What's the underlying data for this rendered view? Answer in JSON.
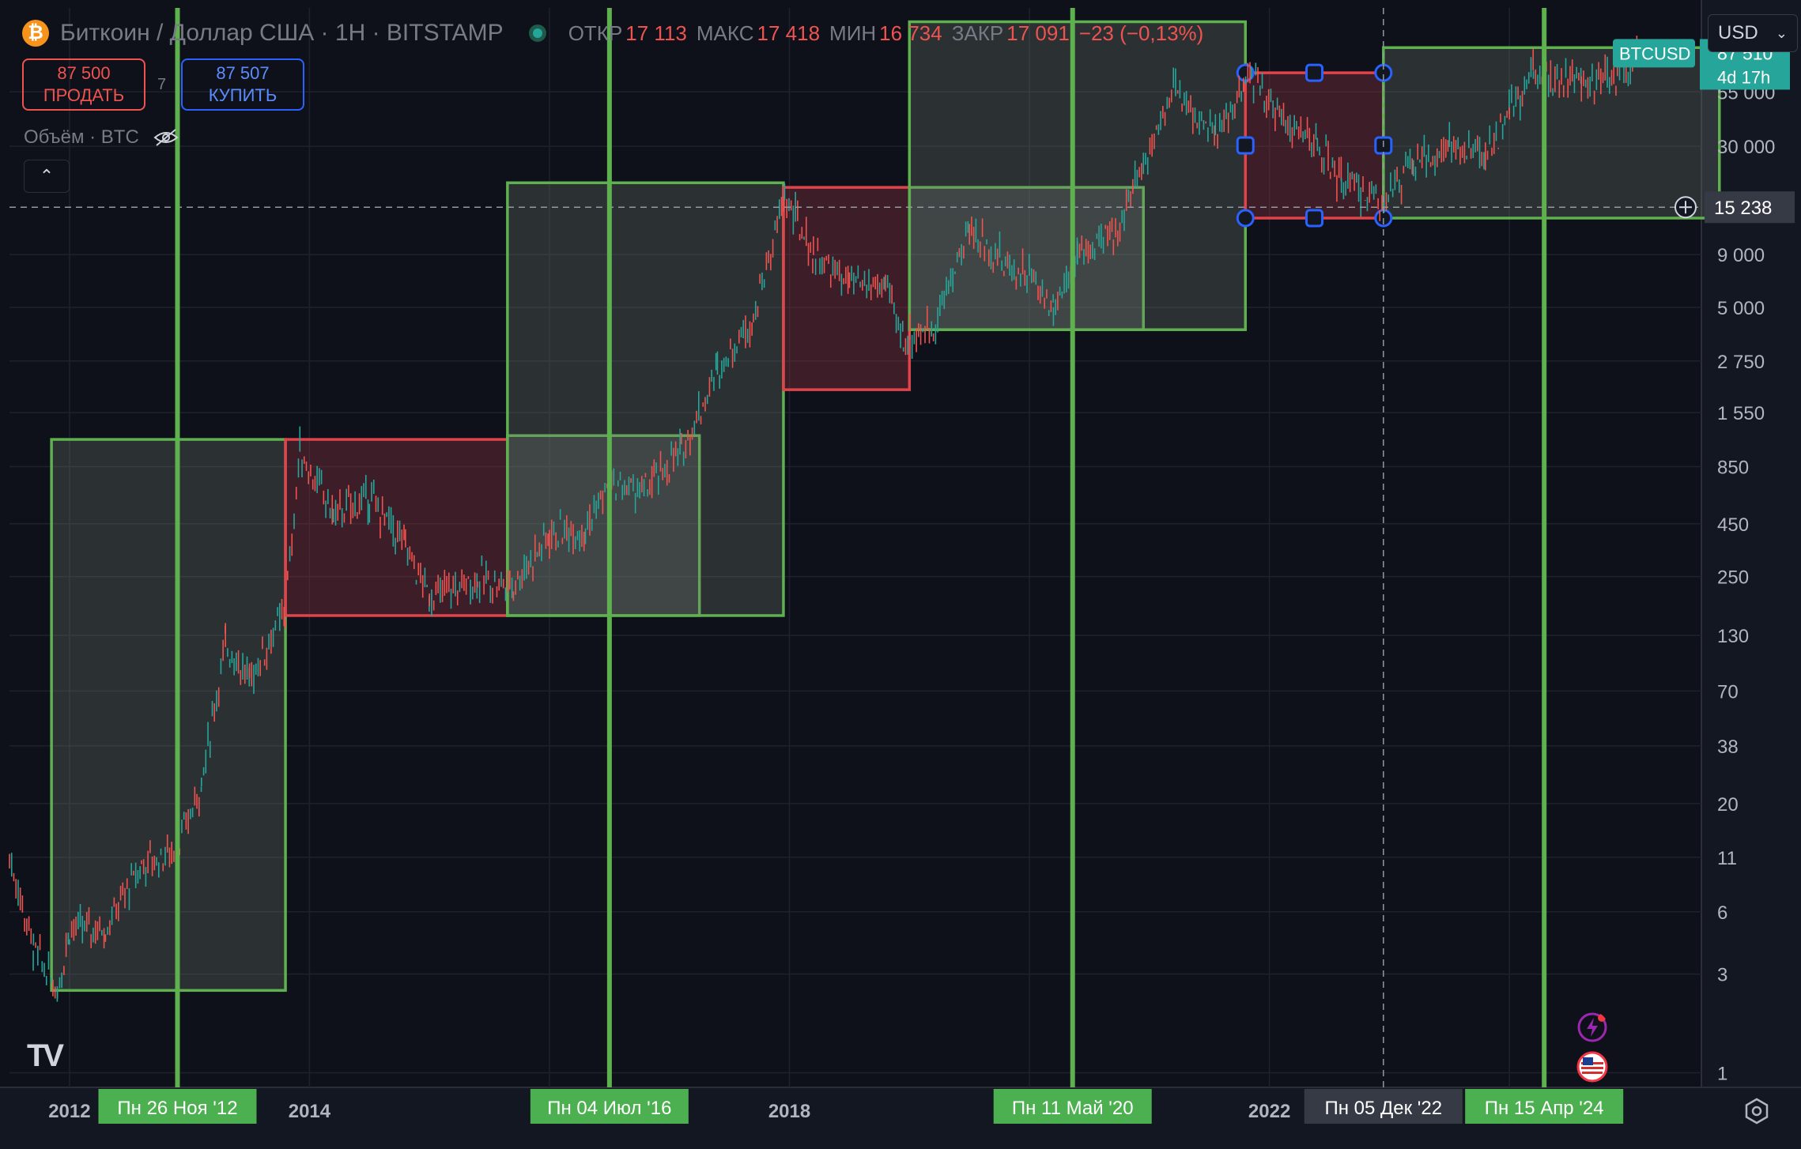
{
  "header": {
    "title": "Биткоин / Доллар США · 1Н · BITSTAMP",
    "ohlc": [
      {
        "label": "ОТКР",
        "value": "17 113"
      },
      {
        "label": "МАКС",
        "value": "17 418"
      },
      {
        "label": "МИН",
        "value": "16 734"
      },
      {
        "label": "ЗАКР",
        "value": "17 091"
      }
    ],
    "change": "−23 (−0,13%)"
  },
  "trade": {
    "sell_price": "87 500",
    "sell_label": "ПРОДАТЬ",
    "buy_price": "87 507",
    "buy_label": "КУПИТЬ",
    "spread": "7"
  },
  "volume_label": "Объём · BTC",
  "currency": "USD",
  "colors": {
    "bg": "#0f111a",
    "up": "#26a69a",
    "down": "#ef5350",
    "green_box": "#5fb04f",
    "red_box": "#e0434a",
    "handle": "#2962ff"
  },
  "chart_data": {
    "type": "line",
    "scale": "log",
    "symbol": "BTCUSD",
    "last_price": "87 510",
    "countdown": "4d 17h",
    "crosshair_price": "15 238",
    "crosshair_date": "Пн 05 Дек '22",
    "y_ticks": [
      1,
      3,
      6,
      11,
      20,
      38,
      70,
      130,
      250,
      450,
      850,
      1550,
      2750,
      5000,
      9000,
      30000,
      55000
    ],
    "y_tick_labels": [
      "1",
      "3",
      "6",
      "11",
      "20",
      "38",
      "70",
      "130",
      "250",
      "450",
      "850",
      "1 550",
      "2 750",
      "5 000",
      "9 000",
      "30 000",
      "55 000"
    ],
    "x_ticks": [
      2012,
      2014,
      2016,
      2018,
      2020,
      2022,
      2024
    ],
    "x_tick_labels": [
      "2012",
      "2014",
      "",
      "2018",
      "",
      "2022",
      ""
    ],
    "ylim": [
      0.85,
      140000
    ],
    "xlim": [
      2011.5,
      2025.6
    ],
    "series": [
      {
        "values": [
          [
            2011.5,
            11
          ],
          [
            2011.7,
            4
          ],
          [
            2011.9,
            2.5
          ],
          [
            2012.0,
            5
          ],
          [
            2012.3,
            5
          ],
          [
            2012.6,
            10
          ],
          [
            2012.9,
            12
          ],
          [
            2013.1,
            25
          ],
          [
            2013.3,
            120
          ],
          [
            2013.5,
            80
          ],
          [
            2013.8,
            170
          ],
          [
            2013.92,
            1000
          ],
          [
            2014.2,
            500
          ],
          [
            2014.5,
            600
          ],
          [
            2014.8,
            350
          ],
          [
            2015.0,
            200
          ],
          [
            2015.4,
            240
          ],
          [
            2015.7,
            230
          ],
          [
            2016.0,
            400
          ],
          [
            2016.3,
            430
          ],
          [
            2016.5,
            700
          ],
          [
            2016.8,
            650
          ],
          [
            2017.1,
            1000
          ],
          [
            2017.4,
            2500
          ],
          [
            2017.7,
            4500
          ],
          [
            2017.96,
            17000
          ],
          [
            2018.2,
            9000
          ],
          [
            2018.5,
            6500
          ],
          [
            2018.8,
            6300
          ],
          [
            2018.95,
            3500
          ],
          [
            2019.2,
            4000
          ],
          [
            2019.5,
            12000
          ],
          [
            2019.8,
            8000
          ],
          [
            2020.0,
            7200
          ],
          [
            2020.2,
            5000
          ],
          [
            2020.4,
            9000
          ],
          [
            2020.7,
            11000
          ],
          [
            2020.95,
            25000
          ],
          [
            2021.2,
            58000
          ],
          [
            2021.55,
            33000
          ],
          [
            2021.85,
            66000
          ],
          [
            2022.1,
            42000
          ],
          [
            2022.4,
            30000
          ],
          [
            2022.6,
            20000
          ],
          [
            2022.92,
            16500
          ],
          [
            2023.2,
            24000
          ],
          [
            2023.5,
            30000
          ],
          [
            2023.8,
            27000
          ],
          [
            2024.0,
            43000
          ],
          [
            2024.2,
            70000
          ],
          [
            2024.6,
            60000
          ],
          [
            2024.9,
            68000
          ],
          [
            2025.1,
            87510
          ]
        ]
      }
    ],
    "boxes": [
      {
        "x0": 2011.85,
        "x1": 2013.8,
        "y0": 2.5,
        "y1": 1150,
        "kind": "green"
      },
      {
        "x0": 2013.8,
        "x1": 2015.65,
        "y0": 162,
        "y1": 1150,
        "kind": "red"
      },
      {
        "x0": 2015.65,
        "x1": 2017.25,
        "y0": 162,
        "y1": 1200,
        "kind": "green"
      },
      {
        "x0": 2015.65,
        "x1": 2017.95,
        "y0": 162,
        "y1": 20000,
        "kind": "green"
      },
      {
        "x0": 2017.95,
        "x1": 2019.0,
        "y0": 2000,
        "y1": 19000,
        "kind": "red"
      },
      {
        "x0": 2019.0,
        "x1": 2020.95,
        "y0": 3900,
        "y1": 19000,
        "kind": "green"
      },
      {
        "x0": 2019.0,
        "x1": 2021.8,
        "y0": 3900,
        "y1": 120000,
        "kind": "green"
      },
      {
        "x0": 2021.8,
        "x1": 2022.95,
        "y0": 13500,
        "y1": 68000,
        "kind": "red"
      },
      {
        "x0": 2022.95,
        "x1": 2025.75,
        "y0": 13500,
        "y1": 90000,
        "kind": "green"
      }
    ],
    "vlines": [
      {
        "x": 2012.9,
        "label": "Пн 26 Ноя '12"
      },
      {
        "x": 2016.5,
        "label": "Пн 04 Июл '16"
      },
      {
        "x": 2020.36,
        "label": "Пн 11 Май '20"
      },
      {
        "x": 2024.29,
        "label": "Пн 15 Апр '24"
      }
    ]
  }
}
